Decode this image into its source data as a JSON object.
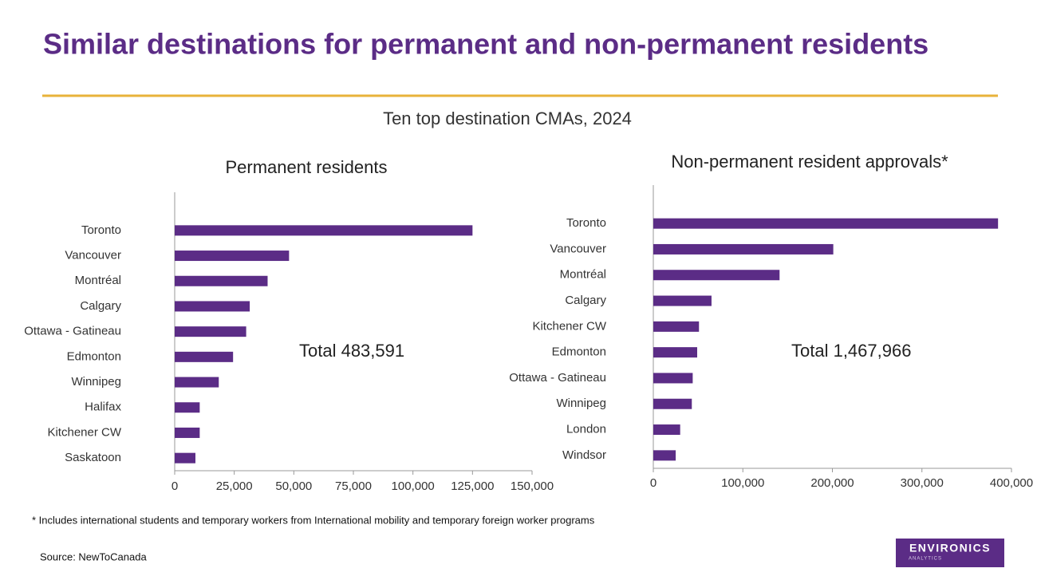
{
  "title": "Similar destinations for permanent and non-permanent residents",
  "subtitle": "Ten top destination CMAs, 2024",
  "footnote": "* Includes international students and temporary workers from International mobility and temporary foreign worker programs",
  "source": "Source: NewToCanada",
  "logo": {
    "name": "ENVIRONICS",
    "tagline": "ANALYTICS"
  },
  "chart_data": [
    {
      "type": "bar",
      "orientation": "horizontal",
      "title": "Permanent residents",
      "annotation": "Total 483,591",
      "color": "#5b2c86",
      "categories": [
        "Toronto",
        "Vancouver",
        "Montréal",
        "Calgary",
        "Ottawa - Gatineau",
        "Edmonton",
        "Winnipeg",
        "Halifax",
        "Kitchener CW",
        "Saskatoon"
      ],
      "values": [
        125000,
        48000,
        39000,
        31500,
        30000,
        24500,
        18500,
        10500,
        10500,
        8700
      ],
      "xlim": [
        0,
        150000
      ],
      "xticks": [
        0,
        {
          "value": 25000,
          "label": "25,000"
        },
        {
          "value": 50000,
          "label": "50,000"
        },
        {
          "value": 75000,
          "label": "75,000"
        },
        {
          "value": 100000,
          "label": "100,000"
        },
        {
          "value": 125000,
          "label": "125,000"
        },
        {
          "value": 150000,
          "label": "150,000"
        }
      ]
    },
    {
      "type": "bar",
      "orientation": "horizontal",
      "title": "Non-permanent resident approvals*",
      "annotation": "Total 1,467,966",
      "color": "#5b2c86",
      "categories": [
        "Toronto",
        "Vancouver",
        "Montréal",
        "Calgary",
        "Kitchener CW",
        "Edmonton",
        "Ottawa - Gatineau",
        "Winnipeg",
        "London",
        "Windsor"
      ],
      "values": [
        385000,
        201000,
        141000,
        65000,
        51000,
        49000,
        44000,
        43000,
        30000,
        25000
      ],
      "xlim": [
        0,
        400000
      ],
      "xticks": [
        0,
        {
          "value": 100000,
          "label": "100,000"
        },
        {
          "value": 200000,
          "label": "200,000"
        },
        {
          "value": 300000,
          "label": "300,000"
        },
        {
          "value": 400000,
          "label": "400,000"
        }
      ]
    }
  ]
}
